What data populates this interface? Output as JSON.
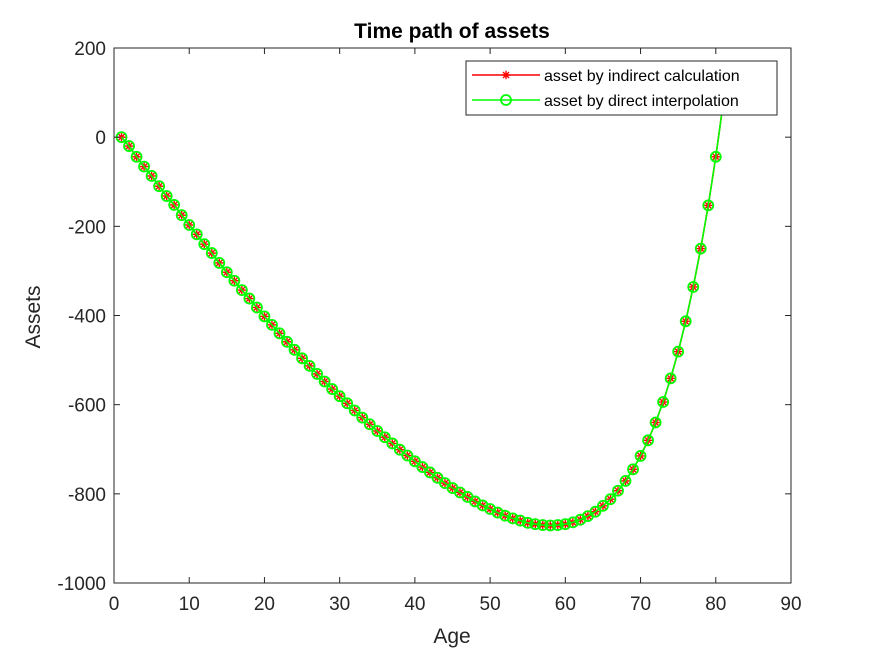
{
  "chart_data": {
    "type": "line",
    "title": "Time path of assets",
    "xlabel": "Age",
    "ylabel": "Assets",
    "xlim": [
      0,
      90
    ],
    "ylim": [
      -1000,
      200
    ],
    "xticks": [
      "0",
      "10",
      "20",
      "30",
      "40",
      "50",
      "60",
      "70",
      "80",
      "90"
    ],
    "yticks": [
      "-1000",
      "-800",
      "-600",
      "-400",
      "-200",
      "0",
      "200"
    ],
    "grid": false,
    "legend_position": "top-right",
    "x": [
      1,
      2,
      3,
      4,
      5,
      6,
      7,
      8,
      9,
      10,
      11,
      12,
      13,
      14,
      15,
      16,
      17,
      18,
      19,
      20,
      21,
      22,
      23,
      24,
      25,
      26,
      27,
      28,
      29,
      30,
      31,
      32,
      33,
      34,
      35,
      36,
      37,
      38,
      39,
      40,
      41,
      42,
      43,
      44,
      45,
      46,
      47,
      48,
      49,
      50,
      51,
      52,
      53,
      54,
      55,
      56,
      57,
      58,
      59,
      60,
      61,
      62,
      63,
      64,
      65,
      66,
      67,
      68,
      69,
      70,
      71,
      72,
      73,
      74,
      75,
      76,
      77,
      78,
      79,
      80,
      81
    ],
    "series": [
      {
        "name": "asset by indirect calculation",
        "color": "#ff0000",
        "marker": "asterisk",
        "values": [
          0,
          -20,
          -44,
          -66,
          -87,
          -110,
          -132,
          -152,
          -175,
          -197,
          -218,
          -240,
          -260,
          -282,
          -303,
          -322,
          -343,
          -362,
          -382,
          -402,
          -421,
          -440,
          -459,
          -477,
          -496,
          -513,
          -531,
          -548,
          -565,
          -581,
          -597,
          -613,
          -629,
          -644,
          -659,
          -673,
          -687,
          -701,
          -714,
          -727,
          -740,
          -752,
          -764,
          -776,
          -787,
          -797,
          -807,
          -817,
          -826,
          -834,
          -842,
          -849,
          -855,
          -860,
          -865,
          -868,
          -870,
          -871,
          -870,
          -868,
          -864,
          -858,
          -850,
          -840,
          -827,
          -812,
          -793,
          -771,
          -745,
          -715,
          -680,
          -640,
          -594,
          -541,
          -481,
          -413,
          -336,
          -250,
          -153,
          -44,
          78
        ]
      },
      {
        "name": "asset by direct interpolation",
        "color": "#00ff00",
        "marker": "circle",
        "values": [
          0,
          -20,
          -44,
          -66,
          -87,
          -110,
          -132,
          -152,
          -175,
          -197,
          -218,
          -240,
          -260,
          -282,
          -303,
          -322,
          -343,
          -362,
          -382,
          -402,
          -421,
          -440,
          -459,
          -477,
          -496,
          -513,
          -531,
          -548,
          -565,
          -581,
          -597,
          -613,
          -629,
          -644,
          -659,
          -673,
          -687,
          -701,
          -714,
          -727,
          -740,
          -752,
          -764,
          -776,
          -787,
          -797,
          -807,
          -817,
          -826,
          -834,
          -842,
          -849,
          -855,
          -860,
          -865,
          -868,
          -870,
          -871,
          -870,
          -868,
          -864,
          -858,
          -850,
          -840,
          -827,
          -812,
          -793,
          -771,
          -745,
          -715,
          -680,
          -640,
          -594,
          -541,
          -481,
          -413,
          -336,
          -250,
          -153,
          -44,
          78
        ]
      }
    ]
  }
}
